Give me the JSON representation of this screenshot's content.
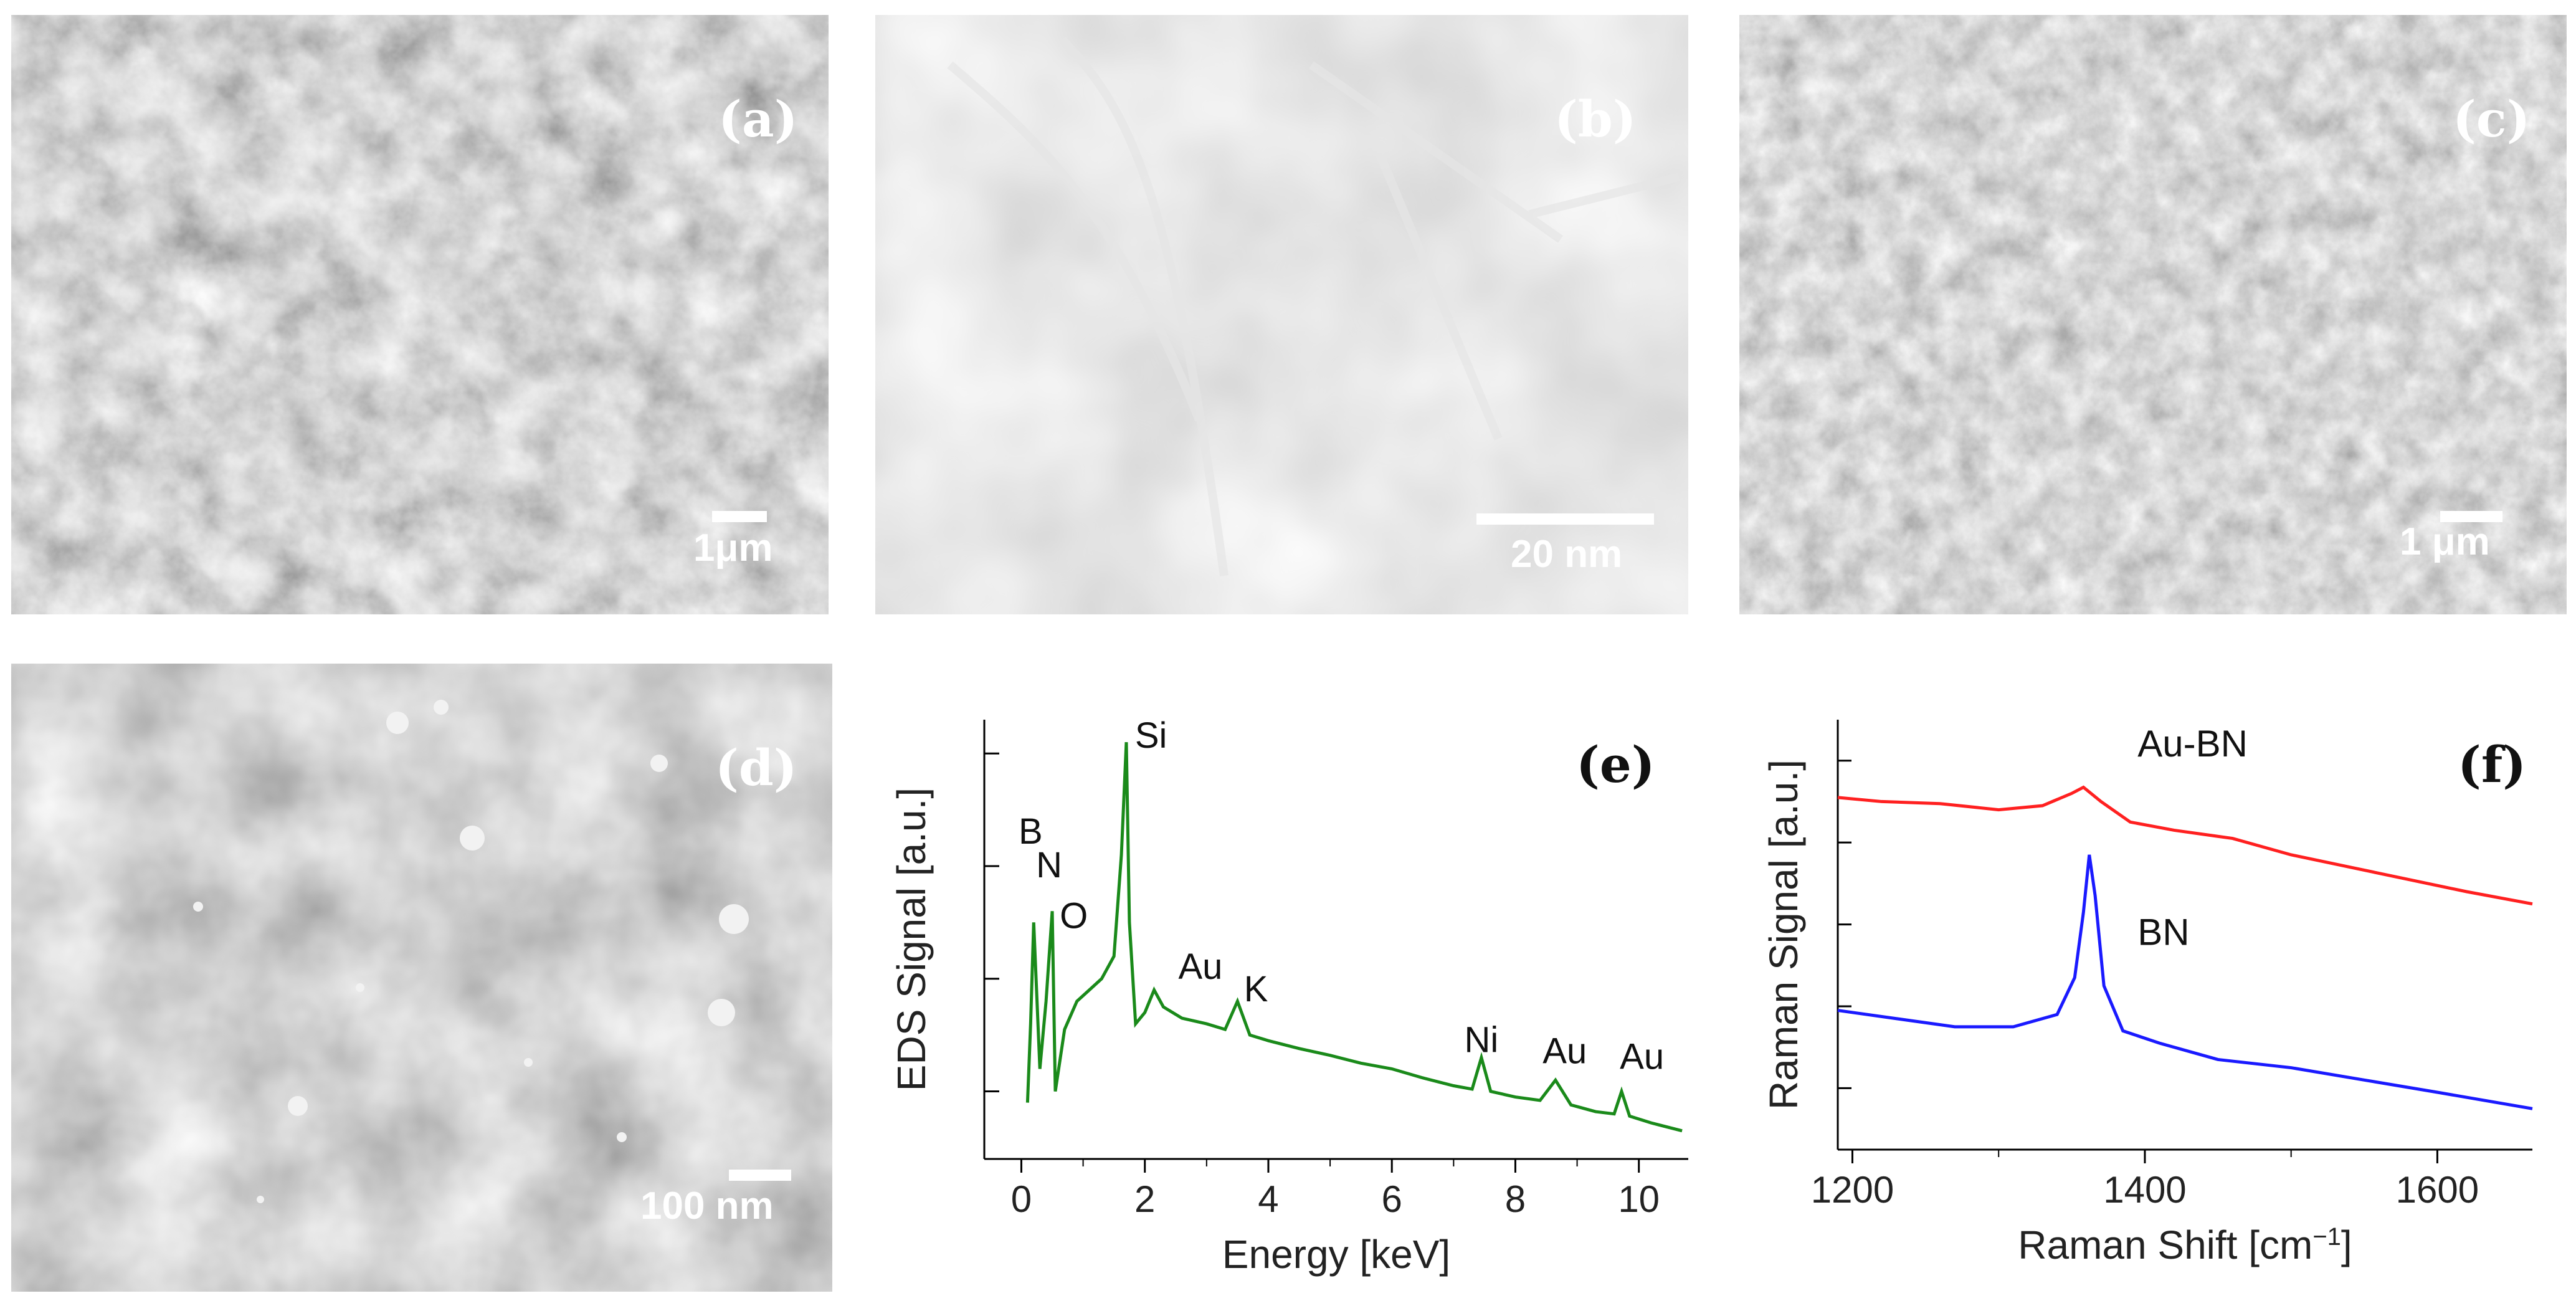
{
  "panels": {
    "a": {
      "label": "(a)",
      "scale_text": "1μm"
    },
    "b": {
      "label": "(b)",
      "scale_text": "20 nm"
    },
    "c": {
      "label": "(c)",
      "scale_text": "1 μm"
    },
    "d": {
      "label": "(d)",
      "scale_text": "100 nm"
    },
    "e": {
      "label": "(e)"
    },
    "f": {
      "label": "(f)"
    }
  },
  "colors": {
    "eds_line": "#1a8a1a",
    "raman_top": "#ff2020",
    "raman_bottom": "#1a1aff"
  },
  "chart_data": [
    {
      "type": "line",
      "panel": "e",
      "xlabel": "Energy [keV]",
      "ylabel": "EDS Signal [a.u.]",
      "xlim": [
        -0.6,
        10.8
      ],
      "xticks": [
        0,
        2,
        4,
        6,
        8,
        10
      ],
      "yscale": "log",
      "series": [
        {
          "x": [
            0.1,
            0.15,
            0.2,
            0.3,
            0.4,
            0.5,
            0.55,
            0.7,
            0.9,
            1.1,
            1.3,
            1.5,
            1.62,
            1.7,
            1.75,
            1.85,
            2.0,
            2.15,
            2.3,
            2.6,
            3.0,
            3.3,
            3.5,
            3.7,
            4.0,
            4.5,
            5.0,
            5.5,
            6.0,
            6.5,
            7.0,
            7.3,
            7.45,
            7.6,
            8.0,
            8.4,
            8.65,
            8.9,
            9.3,
            9.6,
            9.72,
            9.85,
            10.2,
            10.7
          ],
          "y": [
            0.9,
            1.6,
            2.5,
            1.2,
            1.8,
            2.6,
            1.0,
            1.55,
            1.8,
            1.9,
            2.0,
            2.2,
            3.1,
            4.1,
            2.5,
            1.6,
            1.7,
            1.9,
            1.75,
            1.65,
            1.6,
            1.55,
            1.8,
            1.5,
            1.45,
            1.38,
            1.32,
            1.25,
            1.2,
            1.12,
            1.05,
            1.02,
            1.3,
            1.0,
            0.95,
            0.92,
            1.1,
            0.88,
            0.82,
            0.8,
            1.0,
            0.78,
            0.72,
            0.65
          ]
        }
      ],
      "annotations": [
        {
          "text": "B",
          "x": 0.15,
          "y": 3.2
        },
        {
          "text": "N",
          "x": 0.45,
          "y": 2.9
        },
        {
          "text": "O",
          "x": 0.85,
          "y": 2.45
        },
        {
          "text": "Si",
          "x": 2.1,
          "y": 4.05
        },
        {
          "text": "Au",
          "x": 2.9,
          "y": 2.0
        },
        {
          "text": "K",
          "x": 3.8,
          "y": 1.8
        },
        {
          "text": "Ni",
          "x": 7.45,
          "y": 1.35
        },
        {
          "text": "Au",
          "x": 8.8,
          "y": 1.25
        },
        {
          "text": "Au",
          "x": 10.05,
          "y": 1.2
        }
      ]
    },
    {
      "type": "line",
      "panel": "f",
      "xlabel": "Raman Shift [cm",
      "xlabel_sup": "−1",
      "xlabel_end": "]",
      "ylabel": "Raman Signal [a.u.]",
      "xlim": [
        1190,
        1665
      ],
      "xticks": [
        1200,
        1400,
        1600
      ],
      "series": [
        {
          "name": "Au-BN",
          "x": [
            1190,
            1220,
            1260,
            1300,
            1330,
            1350,
            1358,
            1370,
            1390,
            1420,
            1460,
            1500,
            1540,
            1580,
            1620,
            1665
          ],
          "y": [
            8.6,
            8.5,
            8.45,
            8.3,
            8.4,
            8.7,
            8.85,
            8.5,
            8.0,
            7.8,
            7.6,
            7.2,
            6.9,
            6.6,
            6.3,
            6.0
          ]
        },
        {
          "name": "BN",
          "x": [
            1190,
            1230,
            1270,
            1310,
            1340,
            1352,
            1358,
            1362,
            1366,
            1372,
            1385,
            1410,
            1450,
            1500,
            1550,
            1600,
            1665
          ],
          "y": [
            3.4,
            3.2,
            3.0,
            3.0,
            3.3,
            4.2,
            5.8,
            7.2,
            6.2,
            4.0,
            2.9,
            2.6,
            2.2,
            2.0,
            1.7,
            1.4,
            1.0
          ]
        }
      ],
      "annotations": [
        {
          "text": "Au-BN",
          "x": 1395,
          "y": 9.6
        },
        {
          "text": "BN",
          "x": 1395,
          "y": 5.0
        }
      ]
    }
  ]
}
